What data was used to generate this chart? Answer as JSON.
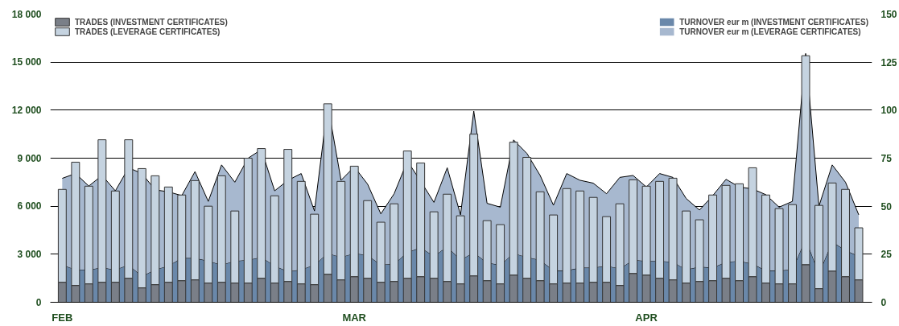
{
  "chart_data": {
    "type": "bar",
    "stacked": true,
    "grid": "y",
    "legend": "top",
    "categories": [
      "FEB",
      null,
      null,
      null,
      null,
      null,
      null,
      null,
      null,
      null,
      null,
      null,
      null,
      null,
      null,
      null,
      null,
      null,
      null,
      null,
      null,
      null,
      "MAR",
      null,
      null,
      null,
      null,
      null,
      null,
      null,
      null,
      null,
      null,
      null,
      null,
      null,
      null,
      null,
      null,
      null,
      null,
      null,
      null,
      null,
      "APR",
      null,
      null,
      null,
      null,
      null,
      null,
      null,
      null,
      null,
      null,
      null,
      null,
      null,
      null,
      null,
      null
    ],
    "ylim": [
      0,
      18000
    ],
    "yticks": [
      0,
      {
        "value": 3000,
        "label": "3 000"
      },
      {
        "value": 6000,
        "label": "6 000"
      },
      {
        "value": 9000,
        "label": "9 000"
      },
      {
        "value": 12000,
        "label": "12 000"
      },
      {
        "value": 15000,
        "label": "15 000"
      },
      {
        "value": 18000,
        "label": "18 000"
      }
    ],
    "y2lim": [
      0,
      150
    ],
    "y2ticks": [
      0,
      25,
      50,
      75,
      100,
      125,
      150
    ],
    "series": [
      {
        "type": "area",
        "axis": "y2",
        "name": "TURNOVER eur m (INVESTMENT CERTIFICATES)",
        "color": "#6a88aa",
        "values": [
          19.5,
          17,
          17,
          18,
          17,
          19.5,
          13.5,
          17,
          19,
          23,
          23,
          21.5,
          19.5,
          21.5,
          22,
          23.5,
          19,
          16,
          17,
          19.5,
          25.5,
          23.5,
          25.5,
          24.5,
          19.5,
          20,
          26,
          28.5,
          24,
          29,
          22,
          26,
          20.5,
          19.5,
          25.5,
          23.5,
          22,
          16.5,
          16.5,
          18,
          18,
          19,
          17.5,
          22,
          21.5,
          21.5,
          21,
          17,
          18.5,
          18,
          21,
          21.5,
          20,
          16.5,
          16.5,
          17,
          33,
          15,
          31.5,
          27,
          24
        ]
      },
      {
        "type": "area",
        "axis": "y2",
        "name": "TURNOVER eur m (LEVERAGE CERTIFICATES)",
        "color": "#a7b8cf",
        "values": [
          45,
          50,
          43.5,
          48,
          41,
          50.5,
          53.5,
          41.5,
          38.5,
          32.5,
          45,
          31,
          52,
          41,
          53,
          56,
          39,
          47.5,
          50,
          28,
          77.5,
          40,
          45,
          37,
          26.5,
          36.5,
          47.5,
          34.5,
          28,
          41,
          23.5,
          73.5,
          31,
          30,
          59,
          54,
          44,
          34,
          50.5,
          45.5,
          44,
          37.5,
          47.5,
          44,
          38.5,
          45.5,
          44,
          37,
          29.5,
          37.5,
          43,
          38.5,
          39,
          39.5,
          33,
          35.5,
          96.5,
          35,
          40,
          35.5,
          21.5
        ]
      },
      {
        "name": "TRADES (INVESTMENT CERTIFICATES)",
        "color": "#7a7f88",
        "values": [
          1250,
          1050,
          1150,
          1250,
          1250,
          1500,
          900,
          1100,
          1250,
          1350,
          1400,
          1200,
          1250,
          1200,
          1200,
          1500,
          1200,
          1300,
          1150,
          1100,
          1750,
          1400,
          1600,
          1500,
          1250,
          1300,
          1500,
          1600,
          1500,
          1300,
          1150,
          1650,
          1350,
          1150,
          1700,
          1500,
          1350,
          1150,
          1200,
          1200,
          1250,
          1250,
          1050,
          1800,
          1700,
          1500,
          1400,
          1200,
          1300,
          1350,
          1500,
          1350,
          1600,
          1200,
          1150,
          1150,
          2350,
          850,
          1950,
          1600,
          1400
        ]
      },
      {
        "name": "TRADES (LEVERAGE CERTIFICATES)",
        "color": "#c5d3e0",
        "values": [
          5800,
          7700,
          6100,
          8900,
          5700,
          8650,
          7450,
          6800,
          5950,
          5350,
          6200,
          4800,
          6650,
          4500,
          7800,
          8100,
          5450,
          8250,
          6400,
          4400,
          10650,
          6150,
          6900,
          4850,
          3750,
          4850,
          7950,
          7100,
          4150,
          5450,
          4250,
          8850,
          3750,
          3700,
          8300,
          7550,
          5550,
          4300,
          5900,
          5750,
          5300,
          4100,
          5100,
          5850,
          5550,
          6050,
          6350,
          4500,
          3850,
          5350,
          5800,
          6050,
          6800,
          5500,
          4700,
          4950,
          13050,
          5200,
          5500,
          5450,
          3250
        ]
      }
    ]
  }
}
